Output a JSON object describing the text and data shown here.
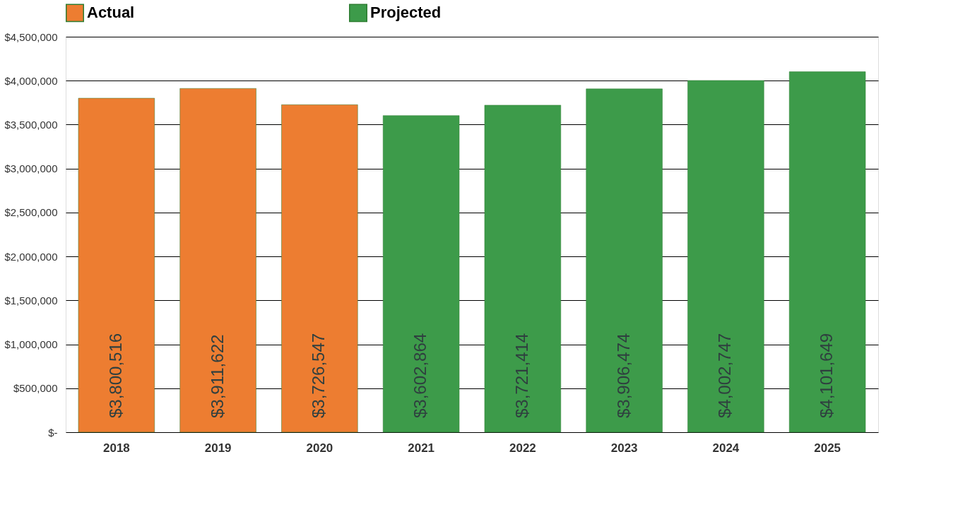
{
  "chart_data": {
    "type": "bar",
    "categories": [
      "2018",
      "2019",
      "2020",
      "2021",
      "2022",
      "2023",
      "2024",
      "2025"
    ],
    "series": [
      {
        "name": "Actual",
        "color": "#ed7d31",
        "values": [
          3800516,
          3911622,
          3726547,
          null,
          null,
          null,
          null,
          null
        ],
        "value_labels": [
          "$3,800,516",
          "$3,911,622",
          "$3,726,547",
          null,
          null,
          null,
          null,
          null
        ]
      },
      {
        "name": "Projected",
        "color": "#3d9b4a",
        "values": [
          null,
          null,
          null,
          3602864,
          3721414,
          3906474,
          4002747,
          4101649
        ],
        "value_labels": [
          null,
          null,
          null,
          "$3,602,864",
          "$3,721,414",
          "$3,906,474",
          "$4,002,747",
          "$4,101,649"
        ]
      }
    ],
    "ylim": [
      0,
      4500000
    ],
    "yticks": [
      {
        "value": 0,
        "label": "$-"
      },
      {
        "value": 500000,
        "label": "$500,000"
      },
      {
        "value": 1000000,
        "label": "$1,000,000"
      },
      {
        "value": 1500000,
        "label": "$1,500,000"
      },
      {
        "value": 2000000,
        "label": "$2,000,000"
      },
      {
        "value": 2500000,
        "label": "$2,500,000"
      },
      {
        "value": 3000000,
        "label": "$3,000,000"
      },
      {
        "value": 3500000,
        "label": "$3,500,000"
      },
      {
        "value": 4000000,
        "label": "$4,000,000"
      },
      {
        "value": 4500000,
        "label": "$4,500,000"
      }
    ],
    "grid": "y",
    "legend": "top"
  }
}
